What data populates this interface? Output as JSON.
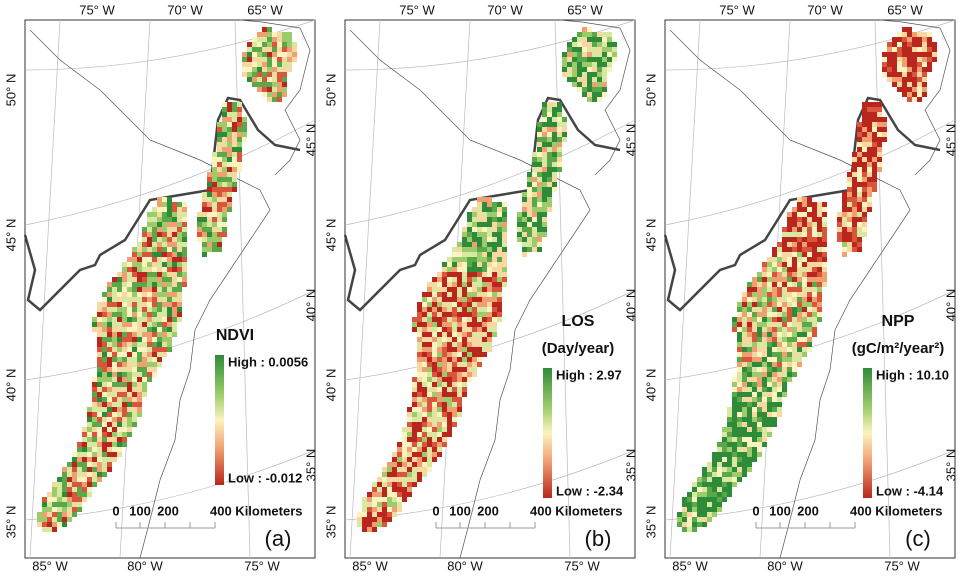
{
  "panels": [
    {
      "label": "(a)",
      "legend": {
        "title": "NDVI",
        "high": "High : 0.0056",
        "low": "Low : -0.012"
      },
      "top_lon": [
        "75° W",
        "70° W",
        "65° W"
      ],
      "bottom_lon": [
        "85° W",
        "80° W",
        "75° W"
      ],
      "left_lat": [
        "50° N",
        "45° N",
        "40° N",
        "35° N"
      ],
      "right_lat": [
        "45° N",
        "40° N",
        "35° N"
      ],
      "scale": [
        "0",
        "100",
        "200",
        "400 Kilometers"
      ]
    },
    {
      "label": "(b)",
      "legend": {
        "title": "LOS",
        "unit": "(Day/year)",
        "high": "High : 2.97",
        "low": "Low : -2.34"
      },
      "top_lon": [
        "75° W",
        "70° W",
        "65° W"
      ],
      "bottom_lon": [
        "85° W",
        "80° W",
        "75° W"
      ],
      "left_lat": [
        "50° N",
        "45° N",
        "40° N",
        "35° N"
      ],
      "right_lat": [
        "45° N",
        "40° N",
        "35° N"
      ],
      "scale": [
        "0",
        "100",
        "200",
        "400 Kilometers"
      ]
    },
    {
      "label": "(c)",
      "legend": {
        "title": "NPP",
        "unit": "(gC/m²/year²)",
        "high": "High : 10.10",
        "low": "Low : -4.14"
      },
      "top_lon": [
        "75° W",
        "70° W",
        "65° W"
      ],
      "bottom_lon": [
        "85° W",
        "80° W",
        "75° W"
      ],
      "left_lat": [
        "50° N",
        "45° N",
        "40° N",
        "35° N"
      ],
      "right_lat": [
        "45° N",
        "40° N",
        "35° N"
      ],
      "scale": [
        "0",
        "100",
        "200",
        "400 Kilometers"
      ]
    }
  ]
}
